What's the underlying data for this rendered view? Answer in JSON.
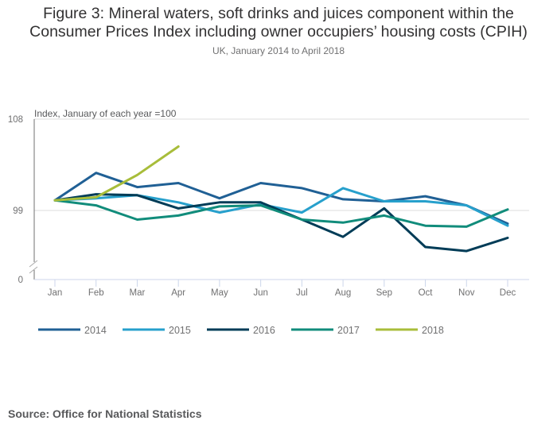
{
  "chart_data": {
    "type": "line",
    "title": "Figure 3: Mineral waters, soft drinks and juices component within the Consumer Prices Index including owner occupiers’ housing costs (CPIH)",
    "title_lines": [
      "Figure 3: Mineral waters, soft drinks and juices component within the",
      "Consumer Prices Index including owner occupiers’ housing costs (CPIH)"
    ],
    "subtitle": "UK, January 2014 to April 2018",
    "ylabel": "Index, January of each year =100",
    "xlabel": "",
    "categories": [
      "Jan",
      "Feb",
      "Mar",
      "Apr",
      "May",
      "Jun",
      "Jul",
      "Aug",
      "Sep",
      "Oct",
      "Nov",
      "Dec"
    ],
    "yticks": [
      0,
      99,
      108
    ],
    "ylim": [
      94,
      108
    ],
    "axis_break": true,
    "grid": true,
    "legend_position": "bottom",
    "series": [
      {
        "name": "2014",
        "color": "#206095",
        "values": [
          100,
          102.7,
          101.3,
          101.7,
          100.2,
          101.7,
          101.2,
          100.1,
          99.9,
          100.4,
          99.5,
          97.7
        ]
      },
      {
        "name": "2015",
        "color": "#27a0cc",
        "values": [
          100,
          100.2,
          100.5,
          99.8,
          98.8,
          99.6,
          98.8,
          101.2,
          99.9,
          99.9,
          99.5,
          97.5
        ]
      },
      {
        "name": "2016",
        "color": "#003c57",
        "values": [
          100,
          100.6,
          100.5,
          99.2,
          99.8,
          99.8,
          98.1,
          96.4,
          99.2,
          95.4,
          95.0,
          96.3
        ]
      },
      {
        "name": "2017",
        "color": "#118c7b",
        "values": [
          100,
          99.5,
          98.1,
          98.5,
          99.4,
          99.5,
          98.1,
          97.8,
          98.5,
          97.5,
          97.4,
          99.1
        ]
      },
      {
        "name": "2018",
        "color": "#a8bd3a",
        "values": [
          100,
          100.3,
          102.5,
          105.3
        ]
      }
    ]
  },
  "source": "Source: Office for National Statistics"
}
